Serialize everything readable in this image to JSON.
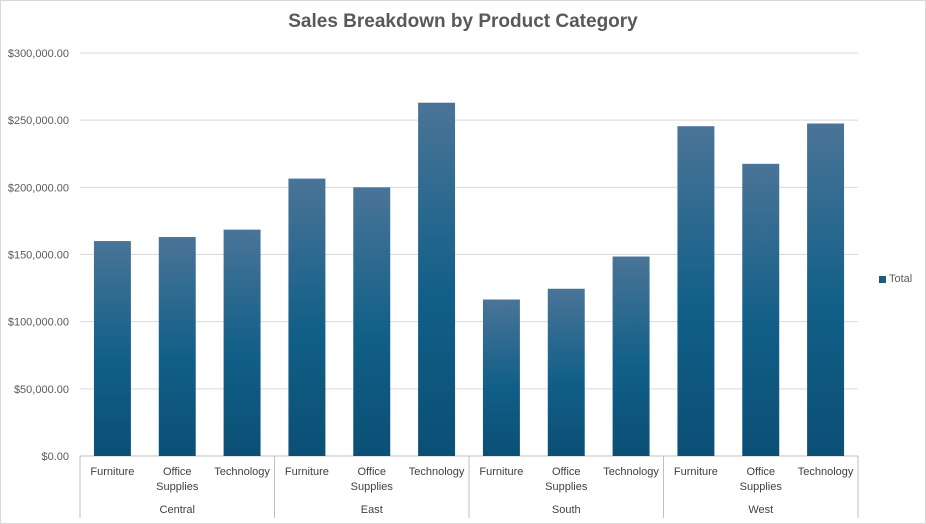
{
  "chart_data": {
    "type": "bar",
    "title": "Sales Breakdown by Product Category",
    "xlabel": "",
    "ylabel": "",
    "ylim": [
      0,
      300000
    ],
    "y_ticks": [
      "$0.00",
      "$50,000.00",
      "$100,000.00",
      "$150,000.00",
      "$200,000.00",
      "$250,000.00",
      "$300,000.00"
    ],
    "grid": true,
    "legend_position": "right",
    "bar_color": "#1f5a7e",
    "groups": [
      {
        "name": "Central",
        "categories": [
          "Furniture",
          "Office Supplies",
          "Technology"
        ],
        "values": [
          160000,
          163000,
          168500
        ]
      },
      {
        "name": "East",
        "categories": [
          "Furniture",
          "Office Supplies",
          "Technology"
        ],
        "values": [
          206500,
          200000,
          263000
        ]
      },
      {
        "name": "South",
        "categories": [
          "Furniture",
          "Office Supplies",
          "Technology"
        ],
        "values": [
          116500,
          124500,
          148500
        ]
      },
      {
        "name": "West",
        "categories": [
          "Furniture",
          "Office Supplies",
          "Technology"
        ],
        "values": [
          245500,
          217500,
          247500
        ]
      }
    ],
    "series": [
      {
        "name": "Total"
      }
    ]
  }
}
